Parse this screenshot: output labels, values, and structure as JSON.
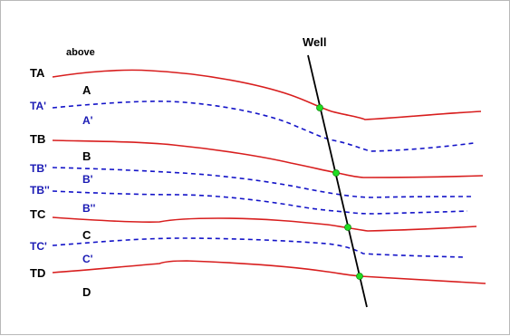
{
  "colors": {
    "horizon_solid": "#d81e1e",
    "horizon_dashed": "#1414c8",
    "well_line": "#000000",
    "well_marker": "#22dd22",
    "label_black": "#000000",
    "label_blue": "#1a1ab4"
  },
  "labels": {
    "above": "above",
    "well": "Well",
    "TA": "TA",
    "A": "A",
    "TA_prime": "TA'",
    "A_prime": "A'",
    "TB": "TB",
    "B": "B",
    "TB_prime": "TB'",
    "B_prime": "B'",
    "TB_dprime": "TB''",
    "B_dprime": "B''",
    "TC": "TC",
    "C": "C",
    "TC_prime": "TC'",
    "C_prime": "C'",
    "TD": "TD",
    "D": "D"
  }
}
